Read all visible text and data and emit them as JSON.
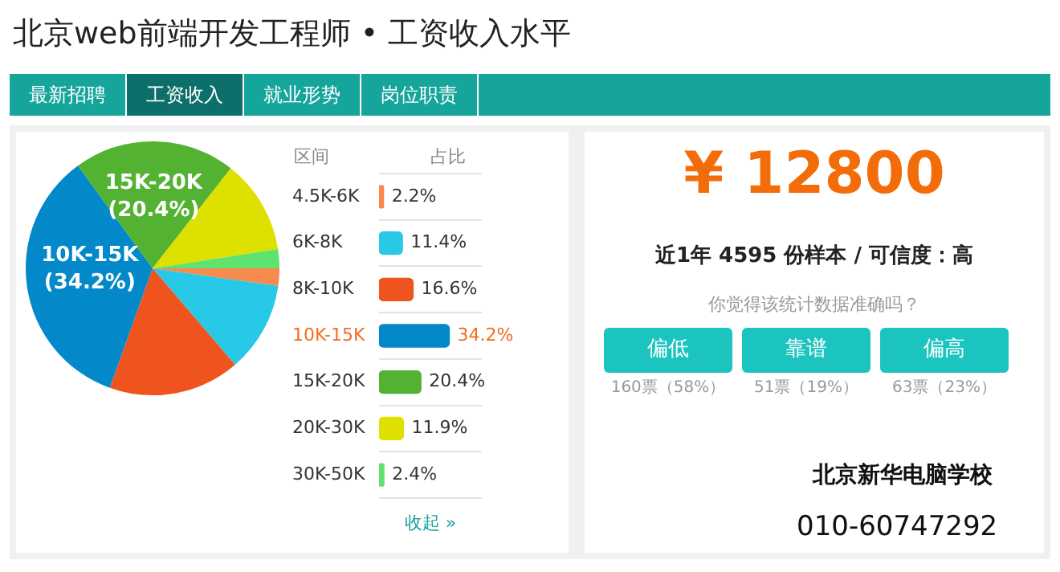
{
  "chart_data": [
    {
      "type": "pie",
      "title": "北京web前端开发工程师 • 工资收入水平",
      "annotations": [
        "最新招聘",
        "工资收入",
        "就业形势",
        "岗位职责"
      ],
      "categories": [
        null,
        null,
        null,
        "10K-15K",
        "15K-20K",
        null,
        null
      ],
      "values": [
        2.2,
        11.4,
        16.6,
        34.2,
        20.4,
        11.9,
        2.4
      ],
      "colors": [
        "#f78a4f",
        "#27c9e6",
        "#f0541e",
        "#0389c9",
        "#53b232",
        "#dee000",
        "#5ee46e"
      ],
      "value_labels": [
        null,
        null,
        null,
        "(34.2%)",
        "(20.4%)",
        null,
        null
      ]
    },
    {
      "type": "bar",
      "orientation": "horizontal",
      "ylabel": "区间",
      "xlabel": "占比",
      "annotations": [
        "收起 »"
      ],
      "grid": "y",
      "categories": [
        "4.5K-6K",
        "6K-8K",
        "8K-10K",
        "10K-15K",
        "15K-20K",
        "20K-30K",
        "30K-50K"
      ],
      "values": [
        2.2,
        11.4,
        16.6,
        34.2,
        20.4,
        11.9,
        2.4
      ],
      "colors": [
        "#f78a4f",
        "#27c9e6",
        "#f0541e",
        "#0389c9",
        "#53b232",
        "#dee000",
        "#5ee46e"
      ],
      "value_labels": [
        "2.2%",
        "11.4%",
        "16.6%",
        "34.2%",
        "20.4%",
        "11.9%",
        "2.4%"
      ]
    },
    {
      "type": "other",
      "title": "¥ 12800",
      "subtitle": "近1年 4595 份样本 / 可信度：高",
      "annotations": [
        "你觉得该统计数据准确吗？",
        "偏低",
        "靠谱",
        "偏高",
        "160票（58%）",
        "51票（19%）",
        "63票（23%）",
        "北京新华电脑学校",
        "010-60747292"
      ]
    }
  ]
}
